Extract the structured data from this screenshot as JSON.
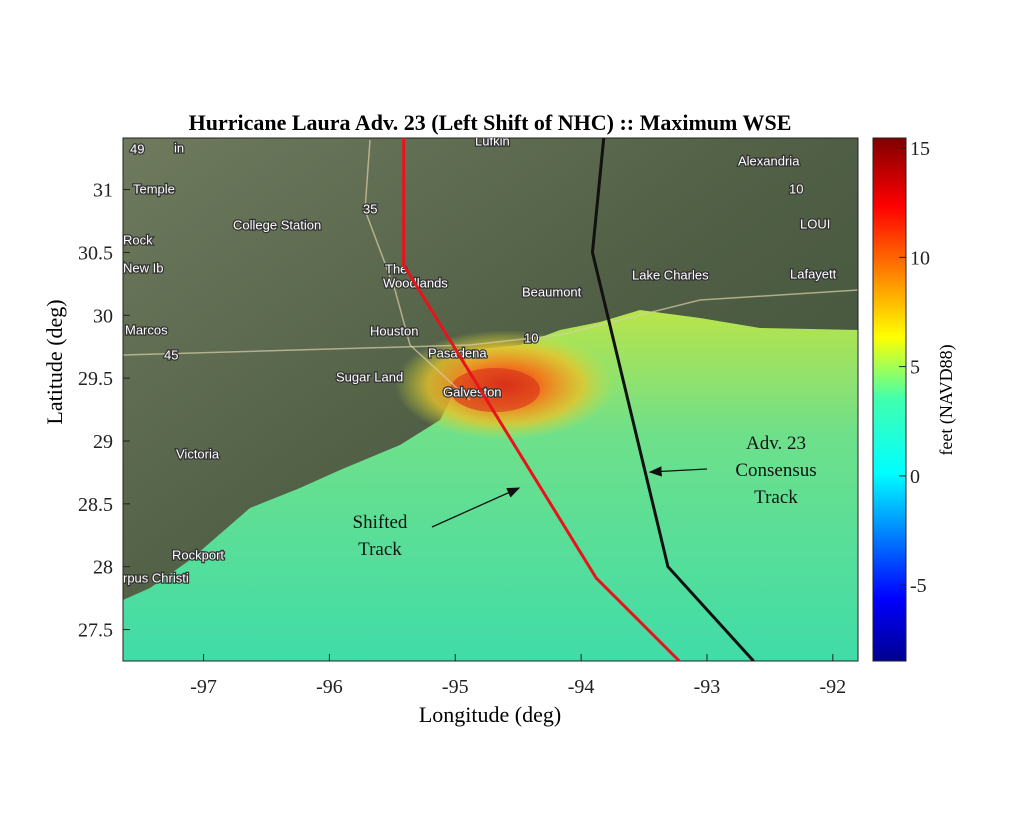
{
  "chart_data": {
    "type": "line",
    "title": "Hurricane Laura Adv. 23 (Left Shift of NHC) :: Maximum WSE",
    "x_label": "Longitude (deg)",
    "y_label": "Latitude (deg)",
    "xlim": [
      -97.64,
      -91.8
    ],
    "ylim": [
      27.25,
      31.41
    ],
    "xticks": [
      -97,
      -96,
      -95,
      -94,
      -93,
      -92
    ],
    "yticks": [
      27.5,
      28,
      28.5,
      29,
      29.5,
      30,
      30.5,
      31
    ],
    "series": [
      {
        "name": "Shifted Track",
        "color": "#e8141c",
        "x": [
          -95.41,
          -95.41,
          -93.88,
          -93.22
        ],
        "values": [
          31.41,
          30.4,
          27.91,
          27.25
        ]
      },
      {
        "name": "Adv. 23 Consensus Track",
        "color": "#111111",
        "x": [
          -93.82,
          -93.91,
          -93.31,
          -92.63
        ],
        "values": [
          31.41,
          30.5,
          28.0,
          27.25
        ]
      }
    ],
    "colorbar": {
      "label": "feet (NAVD88)",
      "clim": [
        -8.47,
        15.46
      ],
      "ticks": [
        -5,
        0,
        5,
        10,
        15
      ],
      "colormap": "jet"
    },
    "annotations": [
      {
        "lines": [
          "Shifted",
          "Track"
        ]
      },
      {
        "lines": [
          "Adv. 23",
          "Consensus",
          "Track"
        ]
      }
    ],
    "map_labels": [
      "Lufkin",
      "Temple",
      "College Station",
      "Rock",
      "The",
      "Woodlands",
      "Alexandria",
      "LOUI",
      "Lafayett",
      "Lake Charles",
      "Beaumont",
      "Houston",
      "Pasadena",
      "Sugar Land",
      "Galveston",
      "Victoria",
      "Rockport",
      "rpus Christi",
      "Marcos",
      "New Ib",
      "in",
      "35",
      "45",
      "10",
      "10",
      "49"
    ]
  }
}
